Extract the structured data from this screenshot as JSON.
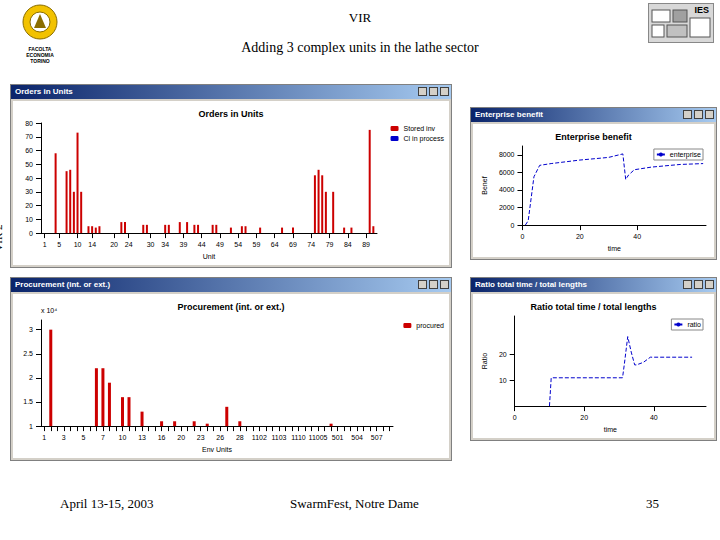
{
  "slide": {
    "title": "VIR",
    "subtitle": "Adding 3 complex units in the lathe sector",
    "side_label": "VIR 2",
    "footer": {
      "date": "April 13-15, 2003",
      "event": "SwarmFest, Notre Dame",
      "page": "35"
    },
    "logo_text": [
      "FACOLTA",
      "ECONOMIA",
      "TORINO"
    ],
    "right_logo_text": "IES"
  },
  "chart_data": [
    {
      "type": "bar",
      "window_title": "Orders in Units",
      "title": "Orders in Units",
      "x_label": "Unit",
      "x": [
        4,
        7,
        8,
        9,
        10,
        11,
        13,
        14,
        15,
        16,
        22,
        23,
        28,
        29,
        34,
        35,
        38,
        40,
        42,
        43,
        47,
        48,
        52,
        55,
        56,
        60,
        66,
        69,
        75,
        76,
        77,
        78,
        80,
        83,
        85,
        90,
        91
      ],
      "series": [
        {
          "name": "Stored inv",
          "color": "#cc0000",
          "values": [
            58,
            45,
            46,
            30,
            73,
            30,
            5,
            5,
            4,
            5,
            8,
            8,
            6,
            6,
            6,
            6,
            8,
            8,
            6,
            6,
            6,
            6,
            4,
            5,
            5,
            4,
            4,
            4,
            42,
            46,
            42,
            30,
            30,
            4,
            4,
            75,
            5
          ]
        },
        {
          "name": "Cl in process",
          "color": "#0000cc",
          "values": [
            null,
            null,
            null,
            null,
            null,
            null,
            null,
            null,
            null,
            null,
            null,
            null,
            null,
            null,
            null,
            null,
            null,
            null,
            null,
            null,
            null,
            null,
            null,
            null,
            null,
            null,
            null,
            null,
            null,
            null,
            null,
            null,
            null,
            null,
            null,
            null,
            null
          ]
        }
      ],
      "xlim": [
        0,
        92
      ],
      "xticks": [
        1,
        5,
        10,
        14,
        20,
        24,
        30,
        34,
        39,
        44,
        49,
        54,
        59,
        64,
        69,
        74,
        79,
        84,
        89
      ],
      "ylim": [
        0,
        80
      ],
      "yticks": [
        0,
        10,
        20,
        30,
        40,
        50,
        60,
        70,
        80
      ],
      "grid": false,
      "legend": "top-right"
    },
    {
      "type": "line",
      "window_title": "Enterprise benefit",
      "title": "Enterprise benefit",
      "x_label": "time",
      "y_label": "Benef",
      "x": [
        1,
        2,
        4,
        6,
        10,
        20,
        30,
        35,
        36,
        37,
        39,
        45,
        55,
        63
      ],
      "series": [
        {
          "name": "enterprise",
          "color": "#0000cc",
          "line_style": "dashed",
          "marker": "none",
          "values": [
            0,
            500,
            5500,
            6800,
            7000,
            7400,
            7700,
            8100,
            5200,
            5700,
            6300,
            6600,
            6900,
            7000
          ]
        }
      ],
      "xlim": [
        0,
        64
      ],
      "xticks": [
        0,
        20,
        40
      ],
      "ylim": [
        0,
        9000
      ],
      "yticks": [
        0,
        2000,
        4000,
        6000,
        8000
      ],
      "grid": false,
      "legend": "top-right"
    },
    {
      "type": "bar",
      "window_title": "Procurement (int. or ext.)",
      "title": "Procurement (int. or ext.)",
      "x_label": "Env Units",
      "y_label": "x 10⁴",
      "categories": [
        "1",
        null,
        null,
        "3",
        null,
        null,
        "5",
        null,
        null,
        "7",
        null,
        null,
        "10",
        null,
        null,
        "13",
        null,
        null,
        "16",
        null,
        null,
        "20",
        null,
        null,
        "23",
        null,
        null,
        "26",
        null,
        null,
        "28",
        null,
        null,
        "1102",
        null,
        null,
        "1103",
        null,
        null,
        "1110",
        null,
        null,
        "11005",
        null,
        null,
        "501",
        null,
        null,
        "504",
        null,
        null,
        "507",
        null,
        null
      ],
      "series": [
        {
          "name": "procured",
          "color": "#cc0000",
          "values": [
            null,
            3,
            null,
            null,
            null,
            null,
            null,
            null,
            2.2,
            2.2,
            1.9,
            null,
            1.6,
            1.6,
            null,
            1.3,
            null,
            null,
            1.1,
            null,
            1.1,
            null,
            null,
            1.1,
            null,
            1.05,
            null,
            null,
            1.4,
            null,
            1.1,
            null,
            null,
            null,
            null,
            null,
            null,
            null,
            null,
            null,
            null,
            null,
            null,
            null,
            1.05,
            null,
            null,
            null,
            null,
            null,
            null,
            null,
            null,
            null
          ]
        }
      ],
      "ylim": [
        1,
        3.2
      ],
      "yticks": [
        1,
        1.5,
        2,
        2.5,
        3
      ],
      "grid": false,
      "legend": "top-right"
    },
    {
      "type": "line",
      "window_title": "Ratio total time / total lengths",
      "title": "Ratio total time / total lengths",
      "x_label": "time",
      "y_label": "Ratio",
      "x": [
        10,
        10.5,
        31,
        31.5,
        32.5,
        33.5,
        34.5,
        35,
        37,
        39,
        51
      ],
      "series": [
        {
          "name": "ratio",
          "color": "#0000cc",
          "line_style": "dashed",
          "marker": "none",
          "values": [
            0,
            11,
            11,
            16,
            27,
            21,
            16,
            16,
            17,
            19,
            19
          ]
        }
      ],
      "xlim": [
        0,
        55
      ],
      "xticks": [
        0,
        20,
        40
      ],
      "ylim": [
        0,
        35
      ],
      "yticks": [
        10,
        20
      ],
      "grid": false,
      "legend": "top-right"
    }
  ]
}
